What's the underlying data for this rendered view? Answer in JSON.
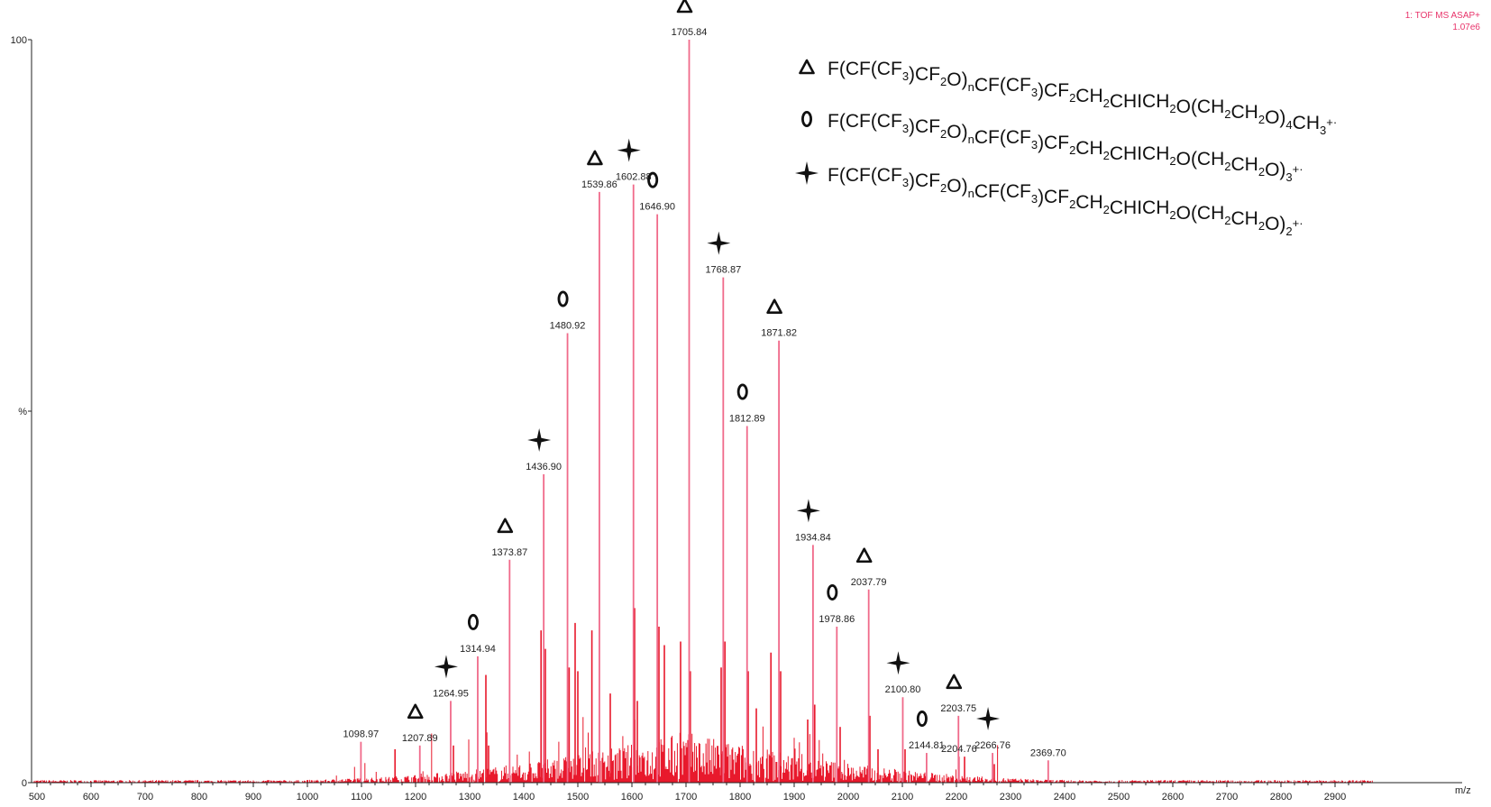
{
  "colors": {
    "spectrum": "#e8192c",
    "peak_line": "#f06a8a",
    "axis": "#222222",
    "annotation": "#e8336a",
    "symbol": "#111111"
  },
  "corner_label": {
    "line1": "1: TOF MS ASAP+",
    "line2": "1.07e6"
  },
  "chart_data": {
    "type": "line",
    "subtype": "mass-spectrum",
    "xlabel": "m/z",
    "ylabel": "%",
    "xlim": [
      490,
      2990
    ],
    "ylim": [
      0,
      100
    ],
    "x_ticks": [
      500,
      600,
      700,
      800,
      900,
      1000,
      1100,
      1200,
      1300,
      1400,
      1500,
      1600,
      1700,
      1800,
      1900,
      2000,
      2100,
      2200,
      2300,
      2400,
      2500,
      2600,
      2700,
      2800,
      2900
    ],
    "y_ticks": [
      {
        "value": 100,
        "label": "100"
      },
      {
        "value": 50,
        "label": "%"
      },
      {
        "value": 0,
        "label": "0"
      }
    ],
    "grid": false,
    "legend_position": "top-right",
    "legend": [
      {
        "symbol": "triangle-icon",
        "text": "F(CF(CF3)CF2O)nCF(CF3)CF2CH2CHICH2O(CH2CH2O)4CH3+·",
        "parts": [
          [
            "F(CF(CF",
            ""
          ],
          [
            "3",
            "sub"
          ],
          [
            ")CF",
            ""
          ],
          [
            "2",
            "sub"
          ],
          [
            "O)",
            ""
          ],
          [
            "n",
            "sub"
          ],
          [
            "CF(CF",
            ""
          ],
          [
            "3",
            "sub"
          ],
          [
            ")CF",
            ""
          ],
          [
            "2",
            "sub"
          ],
          [
            "CH",
            ""
          ],
          [
            "2",
            "sub"
          ],
          [
            "CHICH",
            ""
          ],
          [
            "2",
            "sub"
          ],
          [
            "O(CH",
            ""
          ],
          [
            "2",
            "sub"
          ],
          [
            "CH",
            ""
          ],
          [
            "2",
            "sub"
          ],
          [
            "O)",
            ""
          ],
          [
            "4",
            "sub"
          ],
          [
            "CH",
            ""
          ],
          [
            "3",
            "sub"
          ],
          [
            "+·",
            "sup"
          ]
        ]
      },
      {
        "symbol": "circle-icon",
        "text": "F(CF(CF3)CF2O)nCF(CF3)CF2CH2CHICH2O(CH2CH2O)3+·",
        "parts": [
          [
            "F(CF(CF",
            ""
          ],
          [
            "3",
            "sub"
          ],
          [
            ")CF",
            ""
          ],
          [
            "2",
            "sub"
          ],
          [
            "O)",
            ""
          ],
          [
            "n",
            "sub"
          ],
          [
            "CF(CF",
            ""
          ],
          [
            "3",
            "sub"
          ],
          [
            ")CF",
            ""
          ],
          [
            "2",
            "sub"
          ],
          [
            "CH",
            ""
          ],
          [
            "2",
            "sub"
          ],
          [
            "CHICH",
            ""
          ],
          [
            "2",
            "sub"
          ],
          [
            "O(CH",
            ""
          ],
          [
            "2",
            "sub"
          ],
          [
            "CH",
            ""
          ],
          [
            "2",
            "sub"
          ],
          [
            "O)",
            ""
          ],
          [
            "3",
            "sub"
          ],
          [
            "+·",
            "sup"
          ]
        ]
      },
      {
        "symbol": "star-icon",
        "text": "F(CF(CF3)CF2O)nCF(CF3)CF2CH2CHICH2O(CH2CH2O)2+·",
        "parts": [
          [
            "F(CF(CF",
            ""
          ],
          [
            "3",
            "sub"
          ],
          [
            ")CF",
            ""
          ],
          [
            "2",
            "sub"
          ],
          [
            "O)",
            ""
          ],
          [
            "n",
            "sub"
          ],
          [
            "CF(CF",
            ""
          ],
          [
            "3",
            "sub"
          ],
          [
            ")CF",
            ""
          ],
          [
            "2",
            "sub"
          ],
          [
            "CH",
            ""
          ],
          [
            "2",
            "sub"
          ],
          [
            "CHICH",
            ""
          ],
          [
            "2",
            "sub"
          ],
          [
            "O(CH",
            ""
          ],
          [
            "2",
            "sub"
          ],
          [
            "CH",
            ""
          ],
          [
            "2",
            "sub"
          ],
          [
            "O)",
            ""
          ],
          [
            "2",
            "sub"
          ],
          [
            "+·",
            "sup"
          ]
        ]
      }
    ],
    "labeled_peaks": [
      {
        "mz": 1098.97,
        "label": "1098.97",
        "intensity": 5.5,
        "symbol": ""
      },
      {
        "mz": 1207.89,
        "label": "1207.89",
        "intensity": 5.0,
        "symbol": "triangle"
      },
      {
        "mz": 1264.95,
        "label": "1264.95",
        "intensity": 11.0,
        "symbol": "star"
      },
      {
        "mz": 1314.94,
        "label": "1314.94",
        "intensity": 17.0,
        "symbol": "circle"
      },
      {
        "mz": 1373.87,
        "label": "1373.87",
        "intensity": 30.0,
        "symbol": "triangle"
      },
      {
        "mz": 1436.9,
        "label": "1436.90",
        "intensity": 41.5,
        "symbol": "star"
      },
      {
        "mz": 1480.92,
        "label": "1480.92",
        "intensity": 60.5,
        "symbol": "circle"
      },
      {
        "mz": 1539.86,
        "label": "1539.86",
        "intensity": 79.5,
        "symbol": "triangle"
      },
      {
        "mz": 1602.88,
        "label": "1602.88",
        "intensity": 80.5,
        "symbol": "star"
      },
      {
        "mz": 1646.9,
        "label": "1646.90",
        "intensity": 76.5,
        "symbol": "circle"
      },
      {
        "mz": 1705.84,
        "label": "1705.84",
        "intensity": 100,
        "symbol": "triangle"
      },
      {
        "mz": 1768.87,
        "label": "1768.87",
        "intensity": 68.0,
        "symbol": "star"
      },
      {
        "mz": 1812.89,
        "label": "1812.89",
        "intensity": 48.0,
        "symbol": "circle"
      },
      {
        "mz": 1871.82,
        "label": "1871.82",
        "intensity": 59.5,
        "symbol": "triangle"
      },
      {
        "mz": 1934.84,
        "label": "1934.84",
        "intensity": 32.0,
        "symbol": "star"
      },
      {
        "mz": 1978.86,
        "label": "1978.86",
        "intensity": 21.0,
        "symbol": "circle"
      },
      {
        "mz": 2037.79,
        "label": "2037.79",
        "intensity": 26.0,
        "symbol": "triangle"
      },
      {
        "mz": 2100.8,
        "label": "2100.80",
        "intensity": 11.5,
        "symbol": "star"
      },
      {
        "mz": 2144.81,
        "label": "2144.81",
        "intensity": 4.0,
        "symbol": "circle"
      },
      {
        "mz": 2203.75,
        "label": "2203.75",
        "intensity": 9.0,
        "symbol": "triangle"
      },
      {
        "mz": 2204.76,
        "label": "2204.76",
        "intensity": 3.5,
        "symbol": ""
      },
      {
        "mz": 2266.76,
        "label": "2266.76",
        "intensity": 4.0,
        "symbol": "star"
      },
      {
        "mz": 2369.7,
        "label": "2369.70",
        "intensity": 3.0,
        "symbol": ""
      }
    ],
    "secondary_peaks": [
      {
        "mz": 1162,
        "intensity": 4.5
      },
      {
        "mz": 1270,
        "intensity": 5.0
      },
      {
        "mz": 1330,
        "intensity": 14.5
      },
      {
        "mz": 1335,
        "intensity": 5.0
      },
      {
        "mz": 1432,
        "intensity": 20.5
      },
      {
        "mz": 1440,
        "intensity": 18.0
      },
      {
        "mz": 1484,
        "intensity": 15.5
      },
      {
        "mz": 1495,
        "intensity": 21.5
      },
      {
        "mz": 1500,
        "intensity": 15.0
      },
      {
        "mz": 1526,
        "intensity": 20.5
      },
      {
        "mz": 1560,
        "intensity": 12.0
      },
      {
        "mz": 1605,
        "intensity": 23.5
      },
      {
        "mz": 1610,
        "intensity": 11.0
      },
      {
        "mz": 1650,
        "intensity": 21.0
      },
      {
        "mz": 1660,
        "intensity": 18.5
      },
      {
        "mz": 1690,
        "intensity": 19.0
      },
      {
        "mz": 1708,
        "intensity": 15.0
      },
      {
        "mz": 1765,
        "intensity": 15.5
      },
      {
        "mz": 1772,
        "intensity": 19.0
      },
      {
        "mz": 1815,
        "intensity": 15.0
      },
      {
        "mz": 1830,
        "intensity": 10.0
      },
      {
        "mz": 1857,
        "intensity": 17.5
      },
      {
        "mz": 1875,
        "intensity": 15.0
      },
      {
        "mz": 1925,
        "intensity": 8.5
      },
      {
        "mz": 1938,
        "intensity": 10.5
      },
      {
        "mz": 1985,
        "intensity": 7.5
      },
      {
        "mz": 2040,
        "intensity": 9.0
      },
      {
        "mz": 2055,
        "intensity": 4.5
      },
      {
        "mz": 2105,
        "intensity": 4.5
      },
      {
        "mz": 2215,
        "intensity": 3.5
      },
      {
        "mz": 2270,
        "intensity": 2.5
      }
    ]
  }
}
